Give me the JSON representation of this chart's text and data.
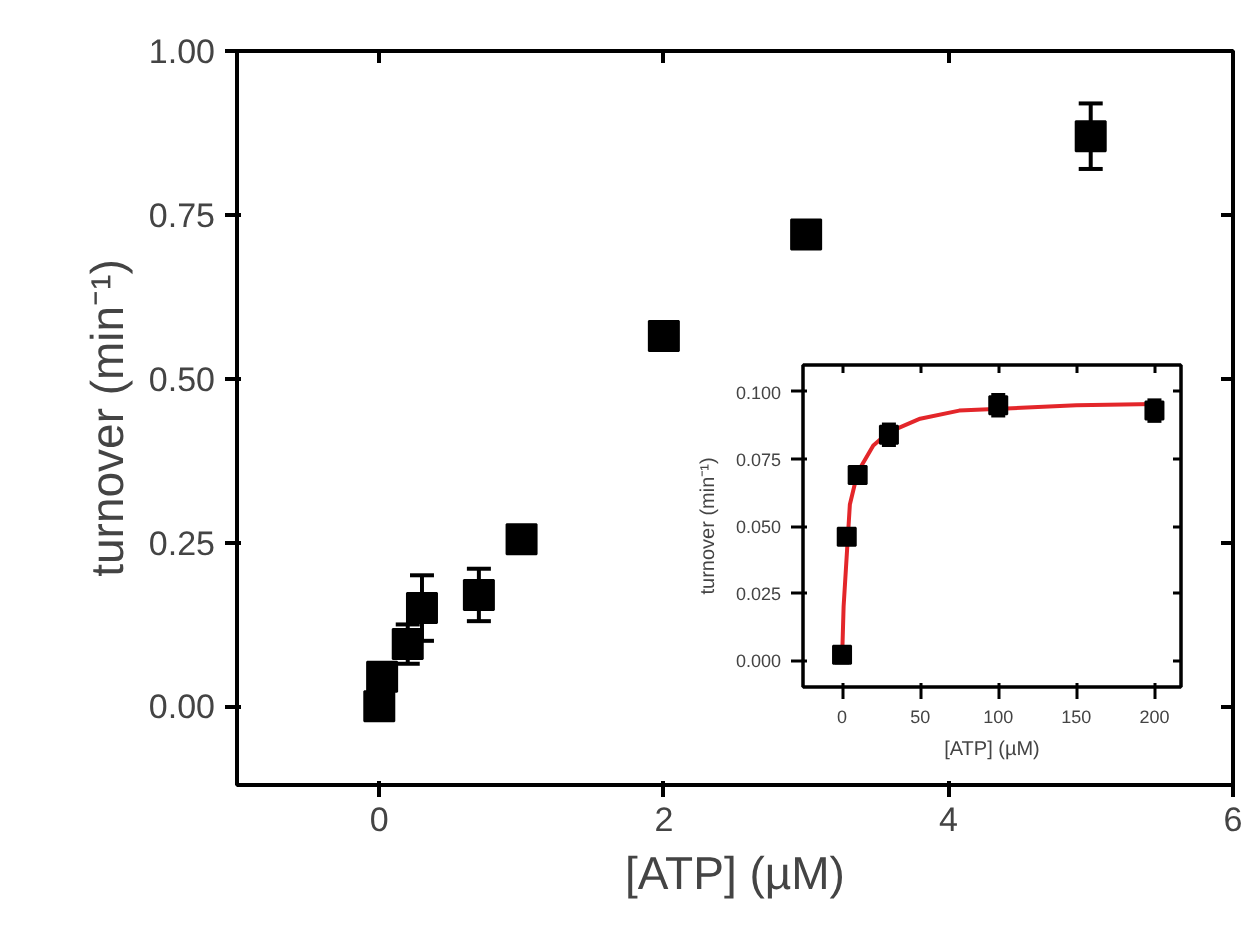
{
  "chart_data": [
    {
      "type": "scatter",
      "xlabel": "[ATP] (µM)",
      "ylabel": "turnover (min⁻¹)",
      "grid": false,
      "xlim": [
        -1,
        6
      ],
      "ylim": [
        -0.12,
        1.0
      ],
      "xticks": [
        0,
        2,
        4,
        6
      ],
      "yticks": [
        {
          "value": 0,
          "label": "0.00"
        },
        {
          "value": 0.25,
          "label": "0.25"
        },
        {
          "value": 0.5,
          "label": "0.50"
        },
        {
          "value": 0.75,
          "label": "0.75"
        },
        {
          "value": 1.0,
          "label": "1.00"
        }
      ],
      "series": [
        {
          "color": "#000000",
          "marker": "square",
          "x": [
            0,
            0.02,
            0.2,
            0.3,
            0.7,
            1,
            2,
            3,
            5
          ],
          "values": [
            0.0,
            0.045,
            0.095,
            0.15,
            0.17,
            0.255,
            0.565,
            0.72,
            0.87
          ],
          "errors": [
            null,
            null,
            0.03,
            0.05,
            0.04,
            null,
            null,
            0.01,
            0.05
          ]
        }
      ]
    },
    {
      "type": "scatter",
      "xlabel": "[ATP] (µM)",
      "ylabel": "turnover (min⁻¹)",
      "grid": false,
      "xlim": [
        -25,
        217
      ],
      "ylim": [
        -0.01,
        0.11
      ],
      "xticks": [
        0,
        50,
        100,
        150,
        200
      ],
      "yticks": [
        {
          "value": 0,
          "label": "0.000"
        },
        {
          "value": 0.025,
          "label": "0.025"
        },
        {
          "value": 0.05,
          "label": "0.050"
        },
        {
          "value": 0.075,
          "label": "0.075"
        },
        {
          "value": 0.1,
          "label": "0.100"
        }
      ],
      "series": [
        {
          "type": "line",
          "color": "#e3262a",
          "x": [
            0,
            1,
            5,
            10,
            20,
            30,
            50,
            75,
            150,
            200
          ],
          "values": [
            0,
            0.02,
            0.058,
            0.07,
            0.08,
            0.085,
            0.09,
            0.093,
            0.095,
            0.0955
          ]
        },
        {
          "color": "#000000",
          "marker": "square",
          "x": [
            0,
            3,
            10,
            30,
            100,
            200
          ],
          "values": [
            0.002,
            0.046,
            0.069,
            0.084,
            0.095,
            0.093
          ],
          "errors": [
            0.003,
            null,
            0.002,
            0.004,
            0.004,
            0.004
          ]
        }
      ]
    }
  ]
}
